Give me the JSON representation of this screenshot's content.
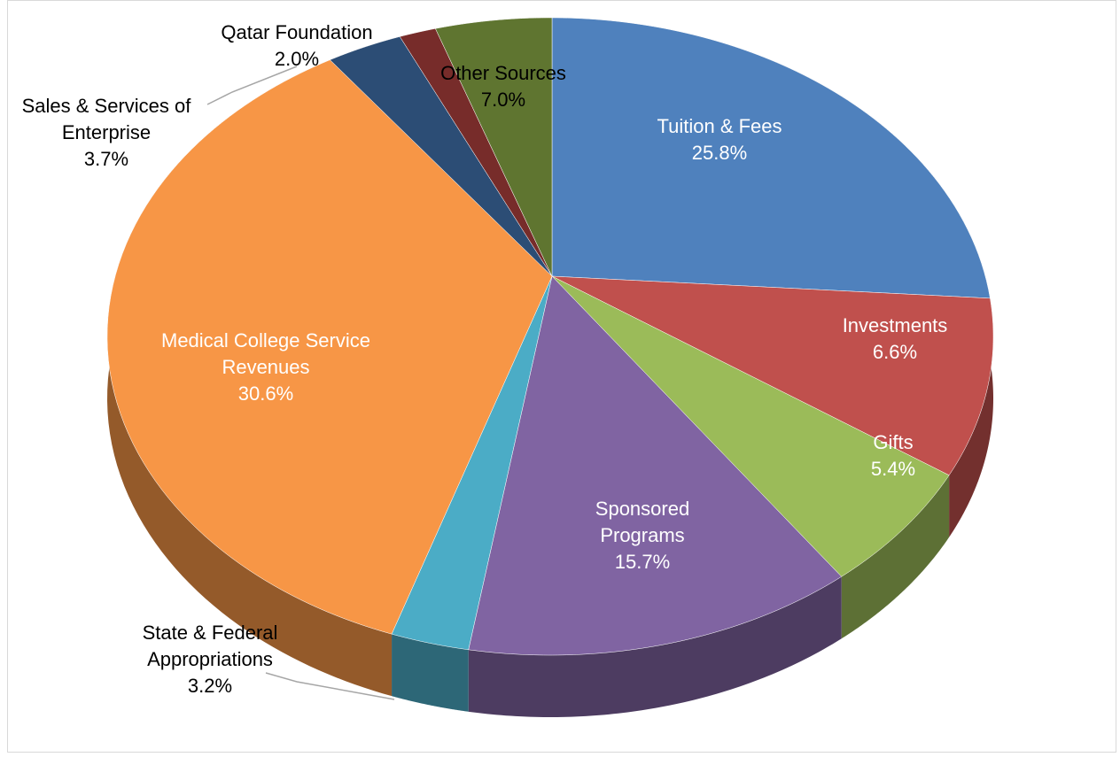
{
  "chart_data": {
    "type": "pie",
    "categories": [
      "Tuition & Fees",
      "Investments",
      "Gifts",
      "Sponsored Programs",
      "State & Federal Appropriations",
      "Medical College Service Revenues",
      "Sales & Services of Enterprise",
      "Qatar Foundation",
      "Other Sources"
    ],
    "values": [
      25.8,
      6.6,
      5.4,
      15.7,
      3.2,
      30.6,
      3.7,
      2.0,
      7.0
    ],
    "value_labels": [
      "25.8%",
      "6.6%",
      "5.4%",
      "15.7%",
      "3.2%",
      "30.6%",
      "3.7%",
      "2.0%",
      "7.0%"
    ],
    "colors": [
      "#4f81bd",
      "#c0504d",
      "#9bbb59",
      "#8064a2",
      "#4bacc6",
      "#f79646",
      "#2c4d75",
      "#772c2a",
      "#5f7530"
    ]
  }
}
